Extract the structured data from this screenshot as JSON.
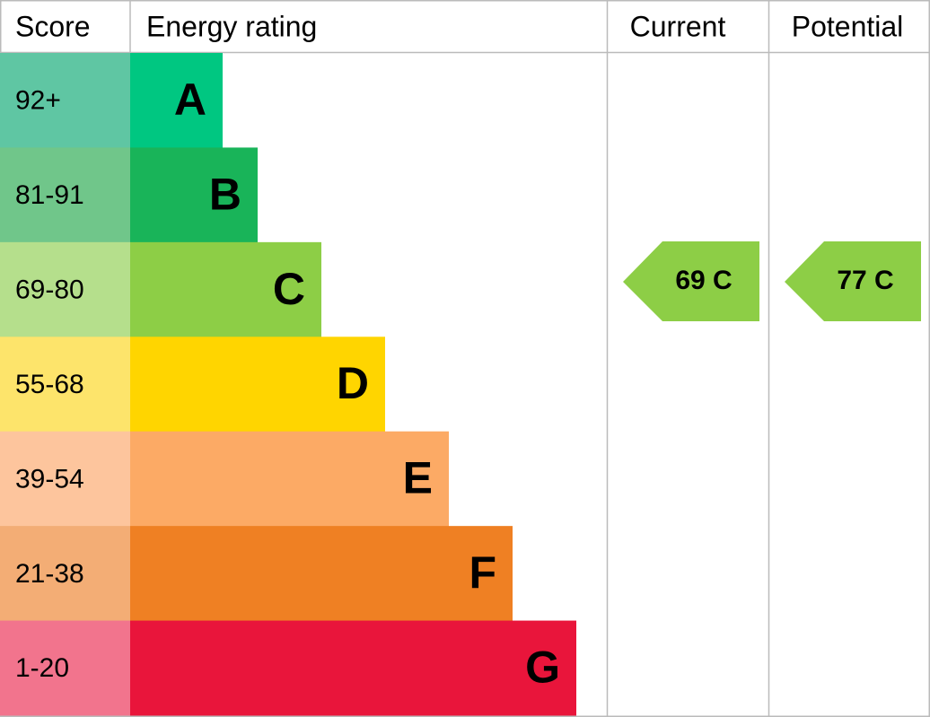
{
  "header": {
    "score": "Score",
    "rating": "Energy rating",
    "current": "Current",
    "potential": "Potential"
  },
  "rows": [
    {
      "score": "92+",
      "band": "A"
    },
    {
      "score": "81-91",
      "band": "B"
    },
    {
      "score": "69-80",
      "band": "C"
    },
    {
      "score": "55-68",
      "band": "D"
    },
    {
      "score": "39-54",
      "band": "E"
    },
    {
      "score": "21-38",
      "band": "F"
    },
    {
      "score": "1-20",
      "band": "G"
    }
  ],
  "current": "69 C",
  "potential": "77 C"
}
